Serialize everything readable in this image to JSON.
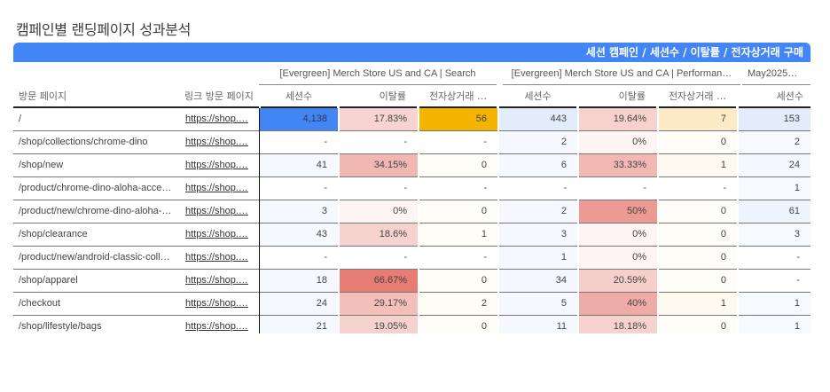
{
  "title": "캠페인별 랜딩페이지 성과분석",
  "header_bar": "세션 캠페인 / 세션수 / 이탈률 / 전자상거래 구매",
  "groups": [
    {
      "label": "[Evergreen] Merch Store US and CA | Search"
    },
    {
      "label": "[Evergreen] Merch Store US and CA | Performan…"
    },
    {
      "label": "May2025…"
    }
  ],
  "columns": {
    "page": "방문 페이지",
    "link": "링크 방문 페이지",
    "sessions": "세션수",
    "bounce": "이탈률",
    "ecommerce": "전자상거래 …"
  },
  "colors": {
    "accent": "#4285f4",
    "sessions_max": "#4285f4",
    "ecommerce_max": "#f4b400",
    "bounce_high": "#e67c73"
  },
  "rows": [
    {
      "page": "/",
      "link": "https://shop.…",
      "v": [
        "4,138",
        "17.83%",
        "56",
        "443",
        "19.64%",
        "7",
        "153"
      ]
    },
    {
      "page": "/shop/collections/chrome-dino",
      "link": "https://shop.…",
      "v": [
        "-",
        "-",
        "-",
        "2",
        "0%",
        "0",
        "2"
      ]
    },
    {
      "page": "/shop/new",
      "link": "https://shop.…",
      "v": [
        "41",
        "34.15%",
        "0",
        "6",
        "33.33%",
        "1",
        "24"
      ]
    },
    {
      "page": "/product/chrome-dino-aloha-acce…",
      "link": "https://shop.…",
      "v": [
        "-",
        "-",
        "-",
        "-",
        "-",
        "-",
        "1"
      ]
    },
    {
      "page": "/product/new/chrome-dino-aloha-…",
      "link": "https://shop.…",
      "v": [
        "3",
        "0%",
        "0",
        "2",
        "50%",
        "0",
        "61"
      ]
    },
    {
      "page": "/shop/clearance",
      "link": "https://shop.…",
      "v": [
        "43",
        "18.6%",
        "1",
        "3",
        "0%",
        "0",
        "3"
      ]
    },
    {
      "page": "/product/new/android-classic-coll…",
      "link": "https://shop.…",
      "v": [
        "-",
        "-",
        "-",
        "1",
        "0%",
        "0",
        "-"
      ]
    },
    {
      "page": "/shop/apparel",
      "link": "https://shop.…",
      "v": [
        "18",
        "66.67%",
        "0",
        "34",
        "20.59%",
        "0",
        "-"
      ]
    },
    {
      "page": "/checkout",
      "link": "https://shop.…",
      "v": [
        "24",
        "29.17%",
        "2",
        "5",
        "40%",
        "1",
        "1"
      ]
    },
    {
      "page": "/shop/lifestyle/bags",
      "link": "https://shop.…",
      "v": [
        "21",
        "19.05%",
        "0",
        "11",
        "18.18%",
        "0",
        "1"
      ]
    }
  ]
}
